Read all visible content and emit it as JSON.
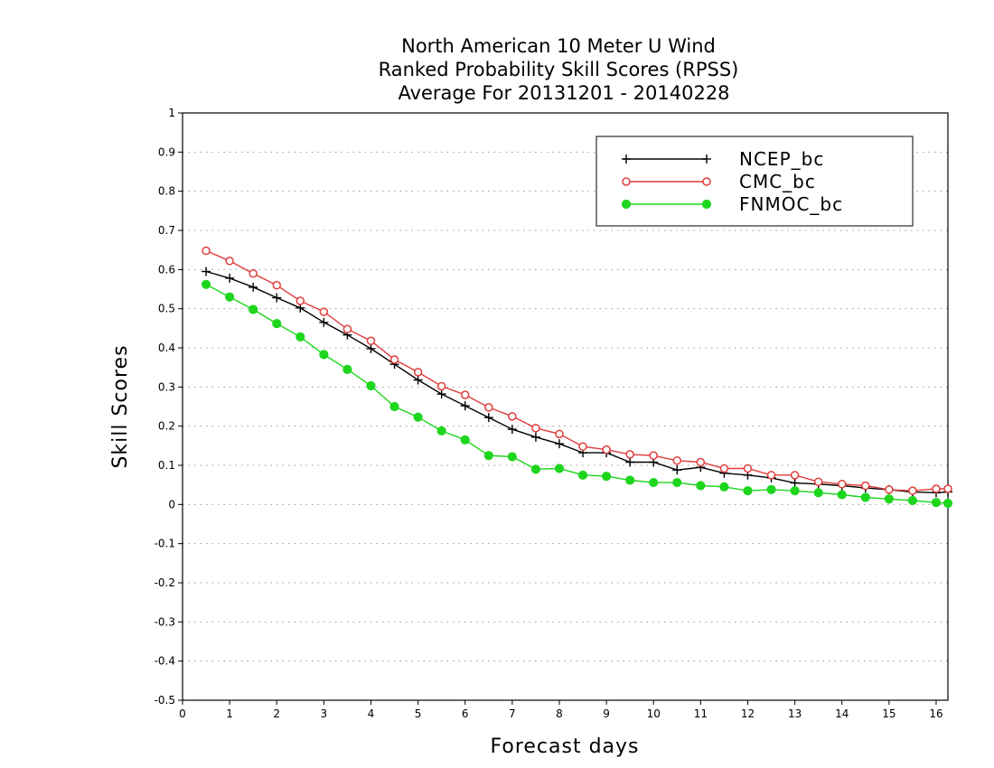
{
  "chart_data": {
    "type": "line",
    "title": [
      "North American 10 Meter U Wind",
      "Ranked Probability Skill Scores (RPSS)",
      "Average For 20131201 - 20140228"
    ],
    "xlabel": "Forecast days",
    "ylabel": "Skill Scores",
    "xlim": [
      0,
      16.25
    ],
    "ylim": [
      -0.5,
      1
    ],
    "x_ticks": [
      0,
      1,
      2,
      3,
      4,
      5,
      6,
      7,
      8,
      9,
      10,
      11,
      12,
      13,
      14,
      15,
      16
    ],
    "y_ticks": [
      -0.5,
      -0.4,
      -0.3,
      -0.2,
      -0.1,
      0,
      0.1,
      0.2,
      0.3,
      0.4,
      0.5,
      0.6,
      0.7,
      0.8,
      0.9,
      1
    ],
    "grid": "horizontal dotted",
    "legend_position": "top-right",
    "x": [
      0.5,
      1,
      1.5,
      2,
      2.5,
      3,
      3.5,
      4,
      4.5,
      5,
      5.5,
      6,
      6.5,
      7,
      7.5,
      8,
      8.5,
      9,
      9.5,
      10,
      10.5,
      11,
      11.5,
      12,
      12.5,
      13,
      13.5,
      14,
      14.5,
      15,
      15.5,
      16,
      16.25
    ],
    "series": [
      {
        "name": "NCEP_bc",
        "color": "#000000",
        "marker": "plus",
        "values": [
          0.595,
          0.578,
          0.555,
          0.528,
          0.502,
          0.465,
          0.433,
          0.398,
          0.358,
          0.318,
          0.282,
          0.252,
          0.222,
          0.192,
          0.172,
          0.155,
          0.132,
          0.132,
          0.108,
          0.108,
          0.088,
          0.095,
          0.08,
          0.075,
          0.068,
          0.055,
          0.052,
          0.048,
          0.042,
          0.038,
          0.032,
          0.03,
          0.032
        ]
      },
      {
        "name": "CMC_bc",
        "color": "#e03c3c",
        "marker": "open-circle",
        "values": [
          0.648,
          0.622,
          0.59,
          0.56,
          0.52,
          0.492,
          0.448,
          0.418,
          0.37,
          0.338,
          0.302,
          0.28,
          0.248,
          0.225,
          0.195,
          0.18,
          0.148,
          0.14,
          0.128,
          0.125,
          0.112,
          0.108,
          0.092,
          0.092,
          0.075,
          0.075,
          0.058,
          0.052,
          0.048,
          0.038,
          0.035,
          0.04,
          0.04
        ]
      },
      {
        "name": "FNMOC_bc",
        "color": "#1ed61e",
        "marker": "filled-circle",
        "values": [
          0.562,
          0.53,
          0.498,
          0.462,
          0.428,
          0.383,
          0.345,
          0.303,
          0.25,
          0.223,
          0.188,
          0.165,
          0.125,
          0.122,
          0.09,
          0.092,
          0.075,
          0.072,
          0.062,
          0.056,
          0.056,
          0.048,
          0.045,
          0.035,
          0.038,
          0.035,
          0.03,
          0.025,
          0.018,
          0.014,
          0.01,
          0.005,
          0.003
        ]
      }
    ]
  }
}
